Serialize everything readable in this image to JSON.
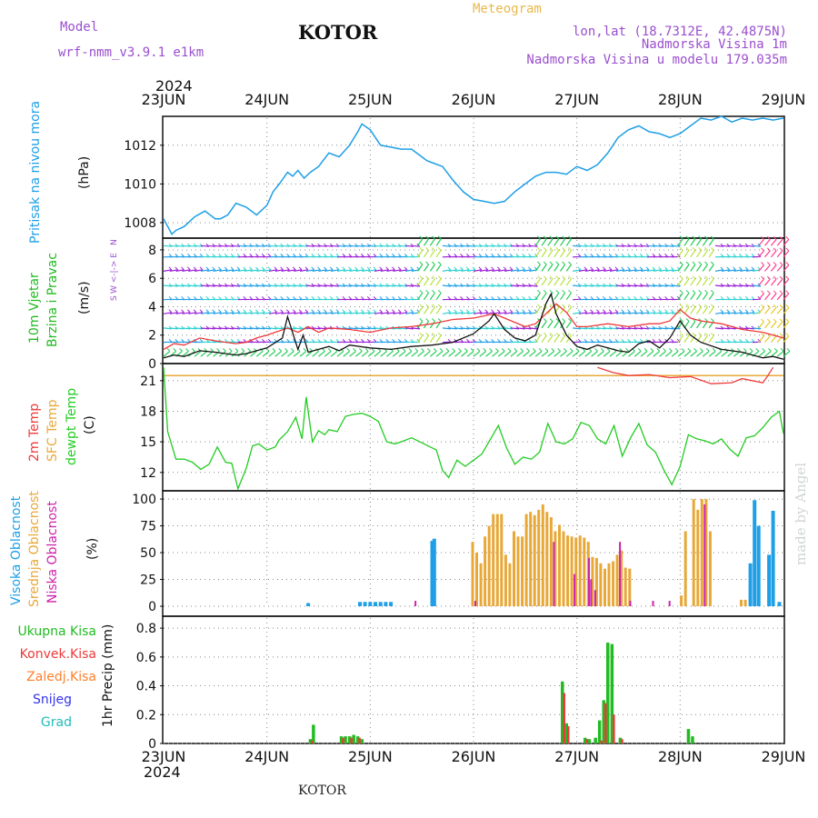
{
  "header": {
    "model_label": "Model",
    "model_name": "wrf-nmm_v3.9.1 e1km",
    "station": "KOTOR",
    "product": "Meteogram",
    "lonlat": "lon,lat (18.7312E, 42.4875N)",
    "elevation": "Nadmorska Visina 1m",
    "model_elevation": "Nadmorska Visina u modelu 179.035m",
    "footer_station": "KOTOR",
    "watermark": "made by Angel",
    "year": "2024"
  },
  "time_axis": {
    "ticks": [
      "23JUN",
      "24JUN",
      "25JUN",
      "26JUN",
      "27JUN",
      "28JUN",
      "29JUN"
    ]
  },
  "colors": {
    "pressure": "#1e9fe6",
    "temp2m": "#ee3a3a",
    "sfc_temp": "#e8a838",
    "dewpt": "#22cc22",
    "high_cloud": "#1e9fe6",
    "mid_cloud": "#e8a838",
    "low_cloud": "#cc22aa",
    "total_precip": "#22bb22",
    "conv_precip": "#ee3a3a",
    "frozen_precip": "#ff7f2a",
    "snow": "#3333ee",
    "graupel": "#22bbbb",
    "wind_mean": "#111111",
    "wind_gust": "#ee3a3a"
  },
  "panels": {
    "pressure": {
      "label_main": "Pritisak na nivou mora",
      "unit": "(hPa)",
      "ticks": [
        "1008",
        "1010",
        "1012"
      ]
    },
    "wind": {
      "label_line1": "10m Vjetar",
      "label_line2": "Brzina i Pravac",
      "unit": "(m/s)",
      "compass_top": "N",
      "compass_mid": "W <-|-> E",
      "compass_bottom": "S",
      "ticks": [
        "0",
        "2",
        "4",
        "6",
        "8"
      ]
    },
    "temperature": {
      "label_2m": "2m Temp",
      "label_sfc": "SFC Temp",
      "label_dew": "dewpt Temp",
      "unit": "(C)",
      "ticks": [
        "12",
        "15",
        "18",
        "21"
      ]
    },
    "cloud": {
      "label_high": "Visoka Oblacnost",
      "label_mid": "Srednja Oblacnost",
      "label_low": "Niska Oblacnost",
      "unit": "(%)",
      "ticks": [
        "0",
        "25",
        "50",
        "75",
        "100"
      ]
    },
    "precip": {
      "label_total": "Ukupna Kisa",
      "label_conv": "Konvek.Kisa",
      "label_frozen": "Zaledj.Kisa",
      "label_snow": "Snijeg",
      "label_grad": "Grad",
      "unit": "1hr Precip (mm)",
      "ticks": [
        "0",
        "0.2",
        "0.4",
        "0.6",
        "0.8"
      ]
    }
  },
  "chart_data": [
    {
      "type": "line",
      "name": "Pritisak na nivou mora",
      "ylabel": "(hPa)",
      "xlabel": "",
      "ylim": [
        1007.2,
        1013.4
      ],
      "x_range_days": [
        0,
        6
      ],
      "grid": true,
      "x": [
        0,
        0.08,
        0.12,
        0.2,
        0.3,
        0.4,
        0.5,
        0.55,
        0.62,
        0.7,
        0.8,
        0.9,
        1.0,
        1.06,
        1.12,
        1.2,
        1.25,
        1.3,
        1.36,
        1.42,
        1.5,
        1.6,
        1.7,
        1.8,
        1.88,
        1.92,
        2.0,
        2.1,
        2.2,
        2.3,
        2.4,
        2.5,
        2.55,
        2.6,
        2.7,
        2.8,
        2.9,
        3.0,
        3.1,
        3.2,
        3.3,
        3.4,
        3.5,
        3.6,
        3.7,
        3.8,
        3.9,
        4.0,
        4.1,
        4.2,
        4.3,
        4.4,
        4.5,
        4.6,
        4.7,
        4.8,
        4.9,
        5.0,
        5.1,
        5.2,
        5.3,
        5.4,
        5.5,
        5.6,
        5.7,
        5.8,
        5.9,
        6.0
      ],
      "y": [
        1008.2,
        1007.4,
        1007.6,
        1007.8,
        1008.3,
        1008.6,
        1008.2,
        1008.2,
        1008.4,
        1009.0,
        1008.8,
        1008.4,
        1008.9,
        1009.6,
        1010.0,
        1010.6,
        1010.4,
        1010.7,
        1010.3,
        1010.6,
        1010.9,
        1011.6,
        1011.4,
        1012.0,
        1012.7,
        1013.1,
        1012.8,
        1012.0,
        1011.9,
        1011.8,
        1011.8,
        1011.4,
        1011.2,
        1011.1,
        1010.9,
        1010.2,
        1009.6,
        1009.2,
        1009.1,
        1009.0,
        1009.1,
        1009.6,
        1010.0,
        1010.4,
        1010.6,
        1010.6,
        1010.5,
        1010.9,
        1010.7,
        1011.0,
        1011.6,
        1012.4,
        1012.8,
        1013.0,
        1012.7,
        1012.6,
        1012.4,
        1012.6,
        1013.0,
        1013.4,
        1013.3,
        1013.5,
        1013.2,
        1013.4,
        1013.3,
        1013.4,
        1013.3,
        1013.4
      ]
    },
    {
      "type": "line",
      "name": "10m Vjetar Brzina i Pravac",
      "ylabel": "(m/s)",
      "xlabel": "",
      "ylim": [
        0,
        8.7
      ],
      "x_range_days": [
        0,
        6
      ],
      "grid": true,
      "series": [
        {
          "role": "wind_mean",
          "x": [
            0,
            0.1,
            0.2,
            0.35,
            0.5,
            0.7,
            0.8,
            0.9,
            1.0,
            1.15,
            1.2,
            1.3,
            1.35,
            1.4,
            1.5,
            1.6,
            1.7,
            1.8,
            2.0,
            2.2,
            2.4,
            2.6,
            2.8,
            3.0,
            3.15,
            3.2,
            3.3,
            3.4,
            3.5,
            3.6,
            3.7,
            3.75,
            3.8,
            3.9,
            4.0,
            4.1,
            4.2,
            4.3,
            4.4,
            4.5,
            4.6,
            4.7,
            4.8,
            4.9,
            5.0,
            5.1,
            5.2,
            5.4,
            5.6,
            5.8,
            5.9,
            6.0
          ],
          "y": [
            0.4,
            0.6,
            0.5,
            0.9,
            0.8,
            0.6,
            0.7,
            0.9,
            1.1,
            1.8,
            3.3,
            1.0,
            2.0,
            0.8,
            1.0,
            1.2,
            0.9,
            1.3,
            1.1,
            1.0,
            1.2,
            1.3,
            1.5,
            2.1,
            3.0,
            3.5,
            2.4,
            1.8,
            1.6,
            2.0,
            4.2,
            4.9,
            3.5,
            2.0,
            1.2,
            1.0,
            1.3,
            1.1,
            0.9,
            0.8,
            1.4,
            1.6,
            1.1,
            1.8,
            3.0,
            2.0,
            1.5,
            1.0,
            0.8,
            0.4,
            0.5,
            0.3
          ]
        },
        {
          "role": "wind_gust",
          "x": [
            0,
            0.1,
            0.2,
            0.35,
            0.5,
            0.7,
            0.8,
            0.9,
            1.0,
            1.2,
            1.3,
            1.4,
            1.5,
            1.6,
            1.8,
            2.0,
            2.2,
            2.4,
            2.6,
            2.8,
            3.0,
            3.2,
            3.3,
            3.5,
            3.6,
            3.7,
            3.8,
            3.9,
            4.0,
            4.1,
            4.3,
            4.5,
            4.6,
            4.7,
            4.8,
            4.9,
            5.0,
            5.1,
            5.2,
            5.4,
            5.6,
            5.8,
            5.9,
            6.0
          ],
          "y": [
            1.0,
            1.4,
            1.3,
            1.8,
            1.6,
            1.4,
            1.5,
            1.8,
            2.0,
            2.5,
            2.2,
            2.6,
            2.2,
            2.5,
            2.4,
            2.2,
            2.5,
            2.6,
            2.8,
            3.1,
            3.2,
            3.5,
            3.2,
            2.6,
            2.8,
            3.5,
            4.2,
            3.6,
            2.6,
            2.6,
            2.8,
            2.6,
            2.7,
            2.8,
            2.8,
            3.0,
            3.8,
            3.2,
            3.0,
            2.8,
            2.4,
            2.2,
            2.0,
            1.8
          ]
        }
      ]
    },
    {
      "type": "line",
      "name": "Temperatura",
      "ylabel": "(C)",
      "xlabel": "",
      "ylim": [
        10.2,
        22.5
      ],
      "x_range_days": [
        0,
        6
      ],
      "grid": true,
      "series": [
        {
          "role": "sfc_temp",
          "x": [
            0,
            6
          ],
          "y": [
            21.5,
            21.5
          ]
        },
        {
          "role": "temp2m",
          "x": [
            4.2,
            4.35,
            4.5,
            4.7,
            4.9,
            5.1,
            5.3,
            5.5,
            5.6,
            5.8,
            5.85,
            5.9
          ],
          "y": [
            22.3,
            21.8,
            21.5,
            21.6,
            21.3,
            21.4,
            20.7,
            20.8,
            21.2,
            20.8,
            21.5,
            22.3
          ]
        },
        {
          "role": "dewpt",
          "x": [
            0,
            0.04,
            0.12,
            0.2,
            0.28,
            0.36,
            0.44,
            0.52,
            0.6,
            0.66,
            0.72,
            0.8,
            0.86,
            0.92,
            1.0,
            1.08,
            1.12,
            1.2,
            1.28,
            1.34,
            1.38,
            1.44,
            1.5,
            1.56,
            1.6,
            1.68,
            1.76,
            1.84,
            1.92,
            2.0,
            2.08,
            2.16,
            2.24,
            2.3,
            2.4,
            2.48,
            2.56,
            2.64,
            2.7,
            2.76,
            2.84,
            2.92,
            3.0,
            3.08,
            3.16,
            3.24,
            3.32,
            3.4,
            3.48,
            3.56,
            3.64,
            3.72,
            3.8,
            3.88,
            3.96,
            4.04,
            4.12,
            4.2,
            4.28,
            4.36,
            4.44,
            4.52,
            4.6,
            4.68,
            4.76,
            4.84,
            4.92,
            5.0,
            5.08,
            5.16,
            5.24,
            5.32,
            5.4,
            5.48,
            5.56,
            5.64,
            5.72,
            5.8,
            5.88,
            5.96,
            6.0
          ],
          "y": [
            22.3,
            16.0,
            13.3,
            13.3,
            13.0,
            12.3,
            12.8,
            14.5,
            13.0,
            12.9,
            10.4,
            12.4,
            14.6,
            14.8,
            14.2,
            14.5,
            15.2,
            16.0,
            17.4,
            15.3,
            19.4,
            15.0,
            16.1,
            15.7,
            16.2,
            16.0,
            17.5,
            17.7,
            17.8,
            17.5,
            17.0,
            15.0,
            14.8,
            15.0,
            15.4,
            15.0,
            14.6,
            14.2,
            12.2,
            11.5,
            13.2,
            12.6,
            13.2,
            13.8,
            15.2,
            16.6,
            14.4,
            12.8,
            13.5,
            13.3,
            14.0,
            16.8,
            15.0,
            14.8,
            15.3,
            16.9,
            16.6,
            15.3,
            14.8,
            16.6,
            13.6,
            15.4,
            16.8,
            14.7,
            14.0,
            12.3,
            10.8,
            12.6,
            15.7,
            15.3,
            15.1,
            14.8,
            15.3,
            14.3,
            13.6,
            15.4,
            15.6,
            16.4,
            17.4,
            18.0,
            15.8
          ]
        }
      ]
    },
    {
      "type": "bar",
      "name": "Oblacnost",
      "ylabel": "(%)",
      "xlabel": "",
      "ylim": [
        0,
        100
      ],
      "x_range_days": [
        0,
        6
      ],
      "grid": true,
      "series": [
        {
          "role": "high_cloud",
          "x": [
            1.4,
            1.9,
            1.95,
            2.0,
            2.05,
            2.1,
            2.15,
            2.2,
            2.6,
            2.62,
            5.68,
            5.72,
            5.76,
            5.8,
            5.86,
            5.9,
            5.96
          ],
          "y": [
            3,
            4,
            4,
            4,
            4,
            4,
            4,
            4,
            61,
            63,
            40,
            99,
            75,
            0,
            48,
            89,
            4
          ]
        },
        {
          "role": "mid_cloud",
          "x": [
            3.0,
            3.04,
            3.08,
            3.12,
            3.16,
            3.2,
            3.24,
            3.28,
            3.32,
            3.36,
            3.4,
            3.44,
            3.48,
            3.52,
            3.56,
            3.6,
            3.64,
            3.68,
            3.72,
            3.76,
            3.8,
            3.84,
            3.88,
            3.92,
            3.96,
            4.0,
            4.04,
            4.08,
            4.12,
            4.16,
            4.2,
            4.24,
            4.28,
            4.32,
            4.36,
            4.4,
            4.44,
            4.48,
            4.52,
            5.02,
            5.06,
            5.1,
            5.14,
            5.18,
            5.22,
            5.26,
            5.3,
            5.34,
            5.6,
            5.64
          ],
          "y": [
            60,
            50,
            40,
            65,
            75,
            86,
            86,
            86,
            48,
            40,
            70,
            65,
            65,
            86,
            88,
            85,
            90,
            95,
            88,
            83,
            70,
            76,
            70,
            66,
            65,
            64,
            66,
            64,
            60,
            46,
            45,
            40,
            35,
            40,
            42,
            48,
            52,
            36,
            35,
            10,
            70,
            0,
            100,
            90,
            100,
            100,
            70,
            0,
            6,
            6
          ]
        },
        {
          "role": "low_cloud",
          "x": [
            2.42,
            3.0,
            3.76,
            3.96,
            4.1,
            4.12,
            4.16,
            4.4,
            4.5,
            4.72,
            4.88,
            5.22
          ],
          "y": [
            5,
            5,
            60,
            30,
            45,
            25,
            15,
            60,
            5,
            5,
            5,
            95
          ]
        }
      ]
    },
    {
      "type": "bar",
      "name": "1hr Precip",
      "ylabel": "1hr Precip (mm)",
      "xlabel": "",
      "ylim": [
        0,
        0.87
      ],
      "x_range_days": [
        0,
        6
      ],
      "grid": true,
      "series": [
        {
          "role": "total_precip",
          "x": [
            1.42,
            1.45,
            1.72,
            1.76,
            1.8,
            1.84,
            1.88,
            1.92,
            3.86,
            3.9,
            4.08,
            4.12,
            4.18,
            4.22,
            4.26,
            4.3,
            4.34,
            4.38,
            4.42,
            5.08,
            5.12
          ],
          "y": [
            0.03,
            0.13,
            0.05,
            0.05,
            0.05,
            0.06,
            0.05,
            0.03,
            0.43,
            0.14,
            0.04,
            0.03,
            0.04,
            0.16,
            0.3,
            0.7,
            0.69,
            0.0,
            0.04,
            0.1,
            0.05
          ]
        },
        {
          "role": "conv_precip",
          "x": [
            1.42,
            1.72,
            1.8,
            1.88,
            3.86,
            3.9,
            4.08,
            4.22,
            4.26,
            4.34,
            4.42
          ],
          "y": [
            0.02,
            0.04,
            0.04,
            0.04,
            0.35,
            0.12,
            0.03,
            0.02,
            0.28,
            0.2,
            0.03
          ]
        }
      ]
    },
    {
      "type": "scatter",
      "name": "wind_barbs",
      "note": "Direction arrows drawn across the wind panel at levels 0.5-8.3 m/s",
      "levels": [
        0.5,
        1.5,
        2.5,
        3.5,
        4.5,
        5.5,
        6.5,
        7.5,
        8.3
      ],
      "x_range_days": [
        0,
        6
      ]
    }
  ]
}
